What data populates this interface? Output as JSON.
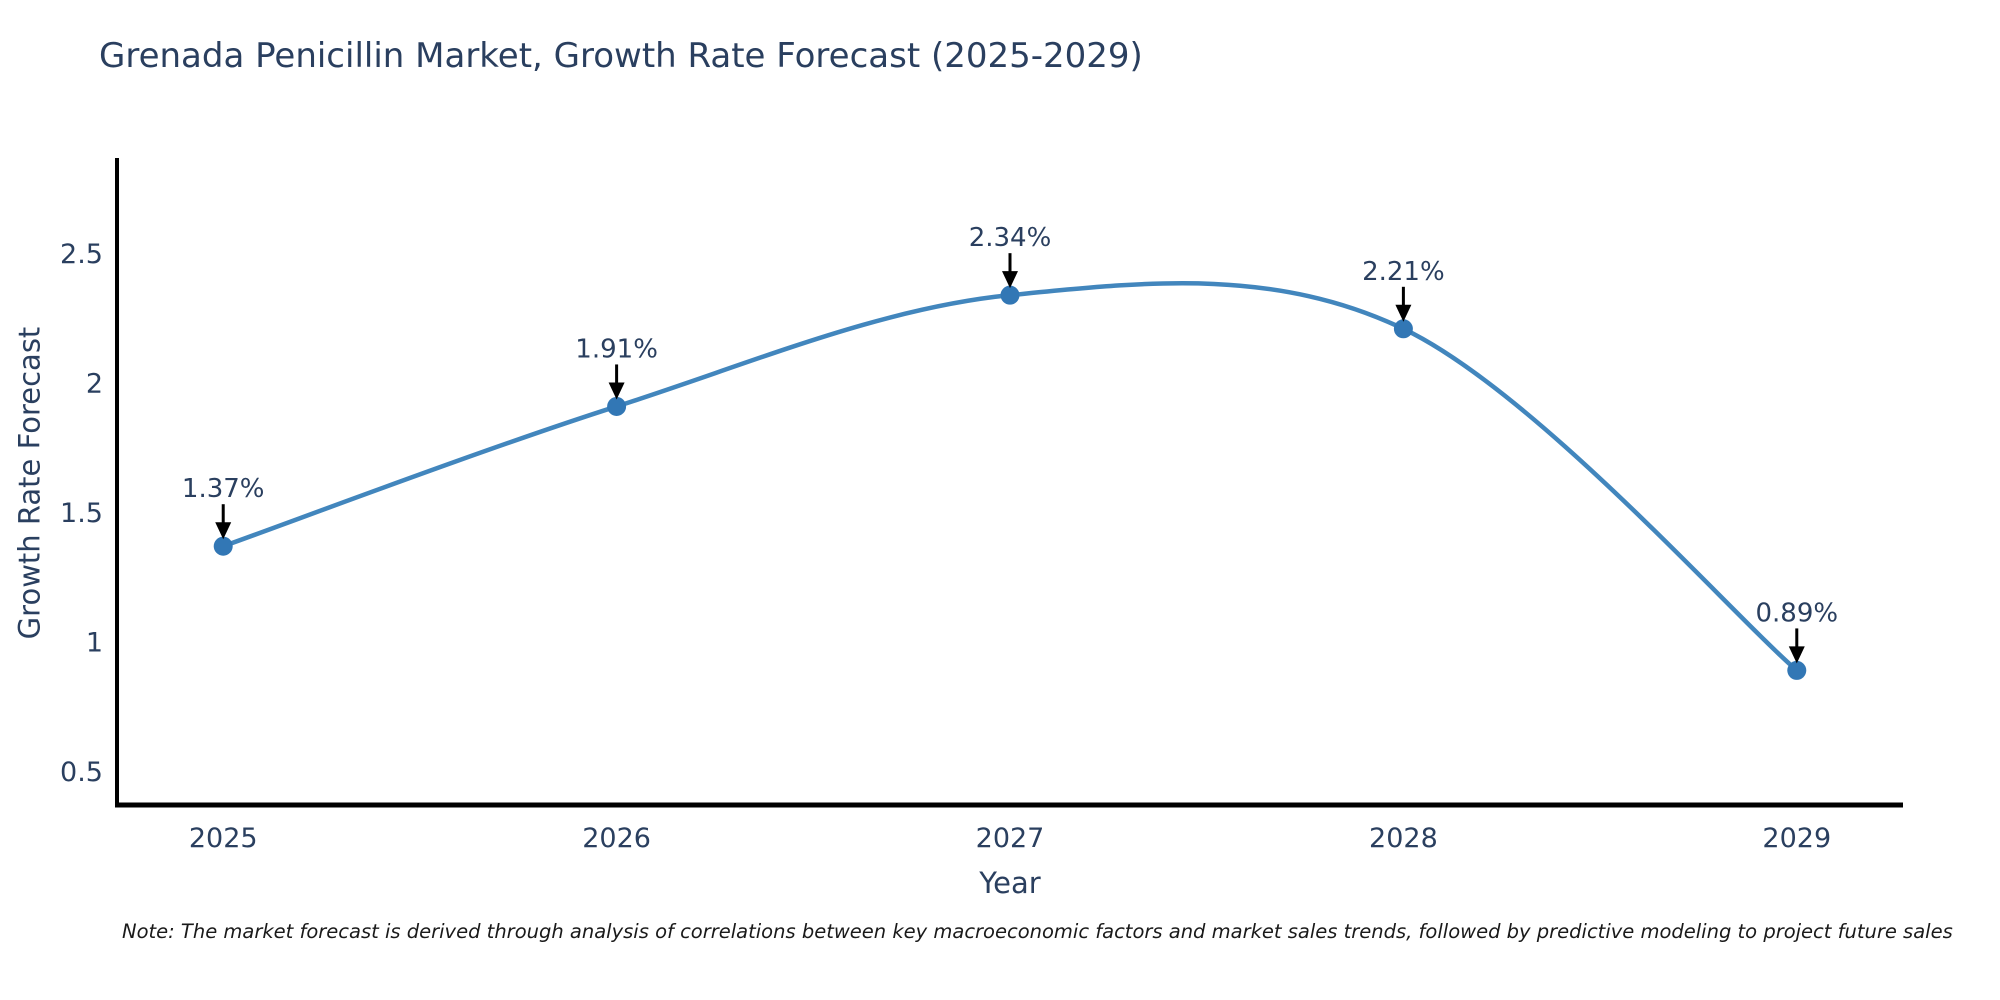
{
  "page": {
    "title": "Grenada Penicillin Market, Growth Rate Forecast (2025-2029)"
  },
  "chart_data": {
    "type": "line",
    "title": "Grenada Penicillin Market, Growth Rate Forecast (2025-2029)",
    "xlabel": "Year",
    "ylabel": "Growth Rate Forecast",
    "x": [
      2025,
      2026,
      2027,
      2028,
      2029
    ],
    "x_tick_labels": [
      "2025",
      "2026",
      "2027",
      "2028",
      "2029"
    ],
    "series": [
      {
        "name": "Growth Rate Forecast",
        "values": [
          1.37,
          1.91,
          2.34,
          2.21,
          0.89
        ],
        "point_labels": [
          "1.37%",
          "1.91%",
          "2.34%",
          "2.21%",
          "0.89%"
        ]
      }
    ],
    "yticks": [
      0.5,
      1,
      1.5,
      2,
      2.5
    ],
    "ytick_labels": [
      "0.5",
      "1",
      "1.5",
      "2",
      "2.5"
    ],
    "xlim": [
      2024.73,
      2029.27
    ],
    "ylim": [
      0.37,
      2.87
    ],
    "line_shape": "spline",
    "grid": false,
    "legend_position": "none",
    "colors": {
      "line": "#4286bd",
      "marker": "#3277b5",
      "axis_text": "#2a3f5f",
      "annotation_text": "#2a3f5f",
      "spine": "#000000",
      "arrow": "#000000",
      "background": "#ffffff"
    }
  },
  "note": {
    "text": "Note: The market forecast is derived through analysis of correlations between key macroeconomic factors and market sales trends, followed by predictive modeling to project future sales"
  }
}
